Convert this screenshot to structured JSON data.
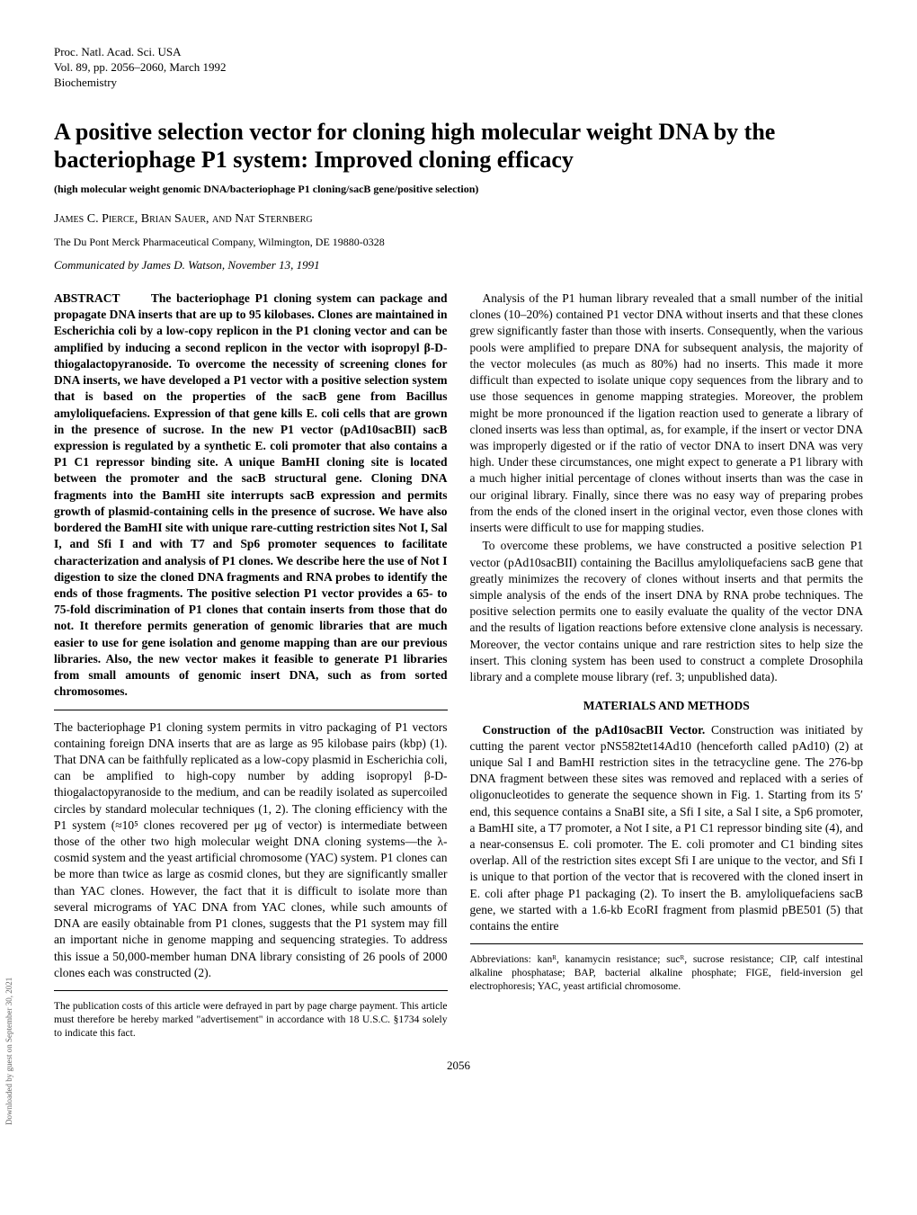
{
  "header": {
    "journal": "Proc. Natl. Acad. Sci. USA",
    "volume": "Vol. 89, pp. 2056–2060, March 1992",
    "section": "Biochemistry"
  },
  "title": "A positive selection vector for cloning high molecular weight DNA by the bacteriophage P1 system: Improved cloning efficacy",
  "keywords": "(high molecular weight genomic DNA/bacteriophage P1 cloning/sacB gene/positive selection)",
  "authors": "James C. Pierce, Brian Sauer, and Nat Sternberg",
  "affiliation": "The Du Pont Merck Pharmaceutical Company, Wilmington, DE 19880-0328",
  "communicated": "Communicated by James D. Watson, November 13, 1991",
  "abstract": {
    "label": "ABSTRACT",
    "text": "The bacteriophage P1 cloning system can package and propagate DNA inserts that are up to 95 kilobases. Clones are maintained in Escherichia coli by a low-copy replicon in the P1 cloning vector and can be amplified by inducing a second replicon in the vector with isopropyl β-D-thiogalactopyranoside. To overcome the necessity of screening clones for DNA inserts, we have developed a P1 vector with a positive selection system that is based on the properties of the sacB gene from Bacillus amyloliquefaciens. Expression of that gene kills E. coli cells that are grown in the presence of sucrose. In the new P1 vector (pAd10sacBII) sacB expression is regulated by a synthetic E. coli promoter that also contains a P1 C1 repressor binding site. A unique BamHI cloning site is located between the promoter and the sacB structural gene. Cloning DNA fragments into the BamHI site interrupts sacB expression and permits growth of plasmid-containing cells in the presence of sucrose. We have also bordered the BamHI site with unique rare-cutting restriction sites Not I, Sal I, and Sfi I and with T7 and Sp6 promoter sequences to facilitate characterization and analysis of P1 clones. We describe here the use of Not I digestion to size the cloned DNA fragments and RNA probes to identify the ends of those fragments. The positive selection P1 vector provides a 65- to 75-fold discrimination of P1 clones that contain inserts from those that do not. It therefore permits generation of genomic libraries that are much easier to use for gene isolation and genome mapping than are our previous libraries. Also, the new vector makes it feasible to generate P1 libraries from small amounts of genomic insert DNA, such as from sorted chromosomes."
  },
  "left_body_p1": "The bacteriophage P1 cloning system permits in vitro packaging of P1 vectors containing foreign DNA inserts that are as large as 95 kilobase pairs (kbp) (1). That DNA can be faithfully replicated as a low-copy plasmid in Escherichia coli, can be amplified to high-copy number by adding isopropyl β-D-thiogalactopyranoside to the medium, and can be readily isolated as supercoiled circles by standard molecular techniques (1, 2). The cloning efficiency with the P1 system (≈10⁵ clones recovered per μg of vector) is intermediate between those of the other two high molecular weight DNA cloning systems—the λ-cosmid system and the yeast artificial chromosome (YAC) system. P1 clones can be more than twice as large as cosmid clones, but they are significantly smaller than YAC clones. However, the fact that it is difficult to isolate more than several micrograms of YAC DNA from YAC clones, while such amounts of DNA are easily obtainable from P1 clones, suggests that the P1 system may fill an important niche in genome mapping and sequencing strategies. To address this issue a 50,000-member human DNA library consisting of 26 pools of 2000 clones each was constructed (2).",
  "left_footnote": "The publication costs of this article were defrayed in part by page charge payment. This article must therefore be hereby marked \"advertisement\" in accordance with 18 U.S.C. §1734 solely to indicate this fact.",
  "right_body_p1": "Analysis of the P1 human library revealed that a small number of the initial clones (10–20%) contained P1 vector DNA without inserts and that these clones grew significantly faster than those with inserts. Consequently, when the various pools were amplified to prepare DNA for subsequent analysis, the majority of the vector molecules (as much as 80%) had no inserts. This made it more difficult than expected to isolate unique copy sequences from the library and to use those sequences in genome mapping strategies. Moreover, the problem might be more pronounced if the ligation reaction used to generate a library of cloned inserts was less than optimal, as, for example, if the insert or vector DNA was improperly digested or if the ratio of vector DNA to insert DNA was very high. Under these circumstances, one might expect to generate a P1 library with a much higher initial percentage of clones without inserts than was the case in our original library. Finally, since there was no easy way of preparing probes from the ends of the cloned insert in the original vector, even those clones with inserts were difficult to use for mapping studies.",
  "right_body_p2": "To overcome these problems, we have constructed a positive selection P1 vector (pAd10sacBII) containing the Bacillus amyloliquefaciens sacB gene that greatly minimizes the recovery of clones without inserts and that permits the simple analysis of the ends of the insert DNA by RNA probe techniques. The positive selection permits one to easily evaluate the quality of the vector DNA and the results of ligation reactions before extensive clone analysis is necessary. Moreover, the vector contains unique and rare restriction sites to help size the insert. This cloning system has been used to construct a complete Drosophila library and a complete mouse library (ref. 3; unpublished data).",
  "methods_heading": "MATERIALS AND METHODS",
  "methods_sub": "Construction of the pAd10sacBII Vector.",
  "methods_text": "Construction was initiated by cutting the parent vector pNS582tet14Ad10 (henceforth called pAd10) (2) at unique Sal I and BamHI restriction sites in the tetracycline gene. The 276-bp DNA fragment between these sites was removed and replaced with a series of oligonucleotides to generate the sequence shown in Fig. 1. Starting from its 5′ end, this sequence contains a SnaBI site, a Sfi I site, a Sal I site, a Sp6 promoter, a BamHI site, a T7 promoter, a Not I site, a P1 C1 repressor binding site (4), and a near-consensus E. coli promoter. The E. coli promoter and C1 binding sites overlap. All of the restriction sites except Sfi I are unique to the vector, and Sfi I is unique to that portion of the vector that is recovered with the cloned insert in E. coli after phage P1 packaging (2). To insert the B. amyloliquefaciens sacB gene, we started with a 1.6-kb EcoRI fragment from plasmid pBE501 (5) that contains the entire",
  "right_footnote": "Abbreviations: kanᴿ, kanamycin resistance; sucᴿ, sucrose resistance; CIP, calf intestinal alkaline phosphatase; BAP, bacterial alkaline phosphate; FIGE, field-inversion gel electrophoresis; YAC, yeast artificial chromosome.",
  "page_number": "2056",
  "sidebar": "Downloaded by guest on September 30, 2021"
}
